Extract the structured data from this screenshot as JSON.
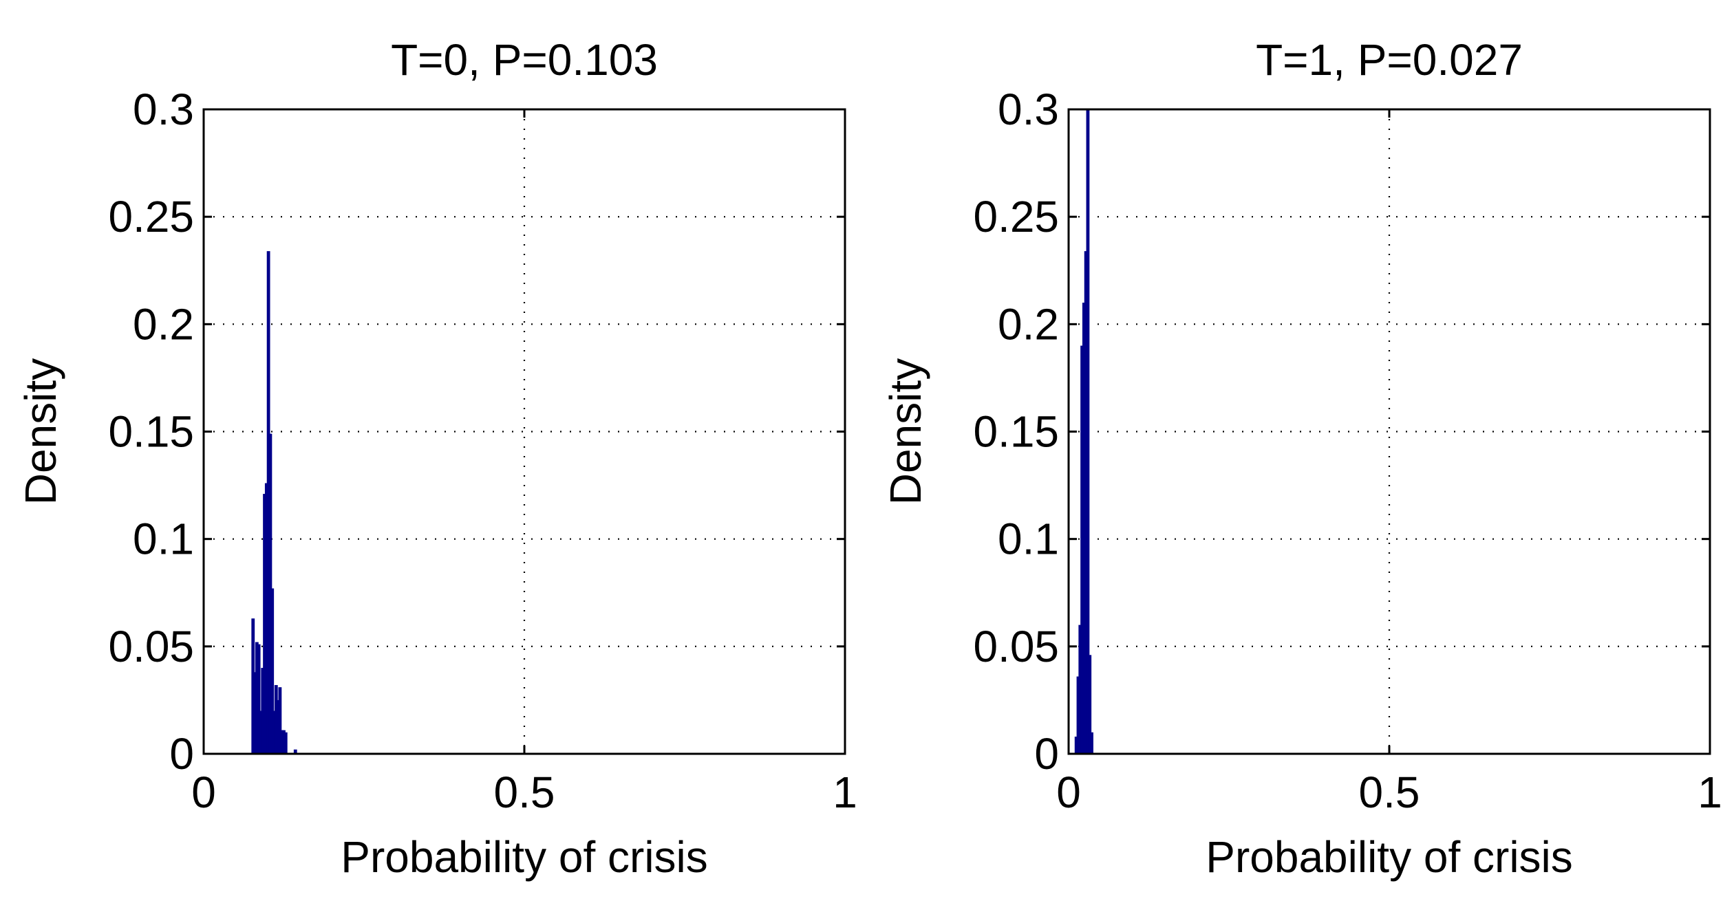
{
  "chart_data": [
    {
      "type": "bar",
      "title": "T=0, P=0.103",
      "xlabel": "Probability of crisis",
      "ylabel": "Density",
      "xlim": [
        0,
        1
      ],
      "ylim": [
        0,
        0.3
      ],
      "xticks": [
        0,
        0.5,
        1
      ],
      "xtick_labels": [
        "0",
        "0.5",
        "1"
      ],
      "yticks": [
        0,
        0.05,
        0.1,
        0.15,
        0.2,
        0.25,
        0.3
      ],
      "ytick_labels": [
        "0",
        "0.05",
        "0.1",
        "0.15",
        "0.2",
        "0.25",
        "0.3"
      ],
      "grid": true,
      "color": "#00008B",
      "bars": [
        {
          "x": 0.077,
          "y": 0.063
        },
        {
          "x": 0.08,
          "y": 0.038
        },
        {
          "x": 0.083,
          "y": 0.052
        },
        {
          "x": 0.086,
          "y": 0.051
        },
        {
          "x": 0.089,
          "y": 0.02
        },
        {
          "x": 0.092,
          "y": 0.04
        },
        {
          "x": 0.095,
          "y": 0.121
        },
        {
          "x": 0.098,
          "y": 0.126
        },
        {
          "x": 0.101,
          "y": 0.234
        },
        {
          "x": 0.104,
          "y": 0.149
        },
        {
          "x": 0.107,
          "y": 0.077
        },
        {
          "x": 0.11,
          "y": 0.02
        },
        {
          "x": 0.113,
          "y": 0.032
        },
        {
          "x": 0.116,
          "y": 0.025
        },
        {
          "x": 0.119,
          "y": 0.031
        },
        {
          "x": 0.122,
          "y": 0.011
        },
        {
          "x": 0.125,
          "y": 0.011
        },
        {
          "x": 0.128,
          "y": 0.01
        },
        {
          "x": 0.143,
          "y": 0.002
        }
      ]
    },
    {
      "type": "bar",
      "title": "T=1, P=0.027",
      "xlabel": "Probability of crisis",
      "ylabel": "Density",
      "xlim": [
        0,
        1
      ],
      "ylim": [
        0,
        0.3
      ],
      "xticks": [
        0,
        0.5,
        1
      ],
      "xtick_labels": [
        "0",
        "0.5",
        "1"
      ],
      "yticks": [
        0,
        0.05,
        0.1,
        0.15,
        0.2,
        0.25,
        0.3
      ],
      "ytick_labels": [
        "0",
        "0.05",
        "0.1",
        "0.15",
        "0.2",
        "0.25",
        "0.3"
      ],
      "grid": true,
      "color": "#00008B",
      "bars": [
        {
          "x": 0.012,
          "y": 0.008
        },
        {
          "x": 0.015,
          "y": 0.036
        },
        {
          "x": 0.018,
          "y": 0.06
        },
        {
          "x": 0.021,
          "y": 0.19
        },
        {
          "x": 0.024,
          "y": 0.21
        },
        {
          "x": 0.027,
          "y": 0.234
        },
        {
          "x": 0.03,
          "y": 0.3
        },
        {
          "x": 0.033,
          "y": 0.046
        },
        {
          "x": 0.036,
          "y": 0.01
        }
      ]
    }
  ]
}
